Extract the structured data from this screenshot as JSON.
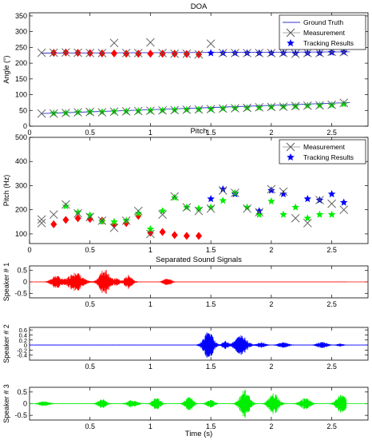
{
  "chart_data": [
    {
      "type": "scatter",
      "title": "DOA",
      "xlabel": "",
      "ylabel": "Angle (°)",
      "xlim": [
        0,
        2.8
      ],
      "ylim": [
        0,
        360
      ],
      "xticks": [
        "0",
        "0.5",
        "1",
        "1.5",
        "2",
        "2.5"
      ],
      "xtick_values": [
        0,
        0.5,
        1,
        1.5,
        2,
        2.5
      ],
      "yticks": [
        "0",
        "50",
        "100",
        "150",
        "200",
        "250",
        "300",
        "350"
      ],
      "ytick_values": [
        0,
        50,
        100,
        150,
        200,
        250,
        300,
        350
      ],
      "legend": [
        "Ground Truth",
        "Measurement",
        "Tracking Results"
      ],
      "legend_placement": "top-right",
      "ground_truth": [
        {
          "x": [
            0.1,
            2.65
          ],
          "y": [
            232,
            236
          ]
        },
        {
          "x": [
            0.1,
            2.65
          ],
          "y": [
            40,
            75
          ]
        }
      ],
      "measurement": {
        "x": [
          0.1,
          0.2,
          0.3,
          0.4,
          0.5,
          0.6,
          0.7,
          0.8,
          0.9,
          1.0,
          1.1,
          1.2,
          1.3,
          1.4,
          1.5,
          1.6,
          1.7,
          1.8,
          1.9,
          2.0,
          2.1,
          2.2,
          2.3,
          2.4,
          2.5,
          2.6,
          0.1,
          0.2,
          0.3,
          0.4,
          0.5,
          0.6,
          0.7,
          0.8,
          0.9,
          1.0,
          1.1,
          1.2,
          1.3,
          1.4,
          1.5,
          1.6,
          1.7,
          1.8,
          1.9,
          2.0,
          2.1,
          2.2,
          2.3,
          2.4,
          2.5,
          2.6
        ],
        "y": [
          233,
          233,
          234,
          233,
          232,
          232,
          264,
          232,
          232,
          266,
          232,
          230,
          230,
          228,
          262,
          232,
          232,
          232,
          232,
          232,
          232,
          230,
          232,
          232,
          236,
          235,
          40,
          40,
          42,
          44,
          45,
          44,
          46,
          47,
          48,
          49,
          50,
          51,
          52,
          53,
          54,
          56,
          57,
          58,
          60,
          61,
          62,
          64,
          65,
          66,
          68,
          74
        ]
      },
      "series": [
        {
          "name": "Tracking Results",
          "color": "#ff0000",
          "marker": "diamond",
          "x": [
            0.2,
            0.3,
            0.4,
            0.5,
            0.6,
            0.7,
            0.8,
            0.9,
            1.0,
            1.1,
            1.2,
            1.3,
            1.4
          ],
          "y": [
            233,
            234,
            233,
            232,
            231,
            231,
            230,
            230,
            230,
            230,
            230,
            229,
            228
          ]
        },
        {
          "name": "Tracking Results",
          "color": "#0000ff",
          "marker": "star",
          "x": [
            1.5,
            1.6,
            1.7,
            1.8,
            1.9,
            2.0,
            2.1,
            2.2,
            2.3,
            2.4,
            2.5,
            2.6
          ],
          "y": [
            232,
            232,
            232,
            232,
            232,
            232,
            232,
            231,
            232,
            232,
            234,
            235
          ]
        },
        {
          "name": "Tracking Results",
          "color": "#00ee00",
          "marker": "star",
          "x": [
            0.2,
            0.3,
            0.4,
            0.5,
            0.6,
            0.7,
            0.8,
            0.9,
            1.0,
            1.1,
            1.2,
            1.3,
            1.4,
            1.5,
            1.6,
            1.7,
            1.8,
            1.9,
            2.0,
            2.1,
            2.2,
            2.3,
            2.4,
            2.5,
            2.6
          ],
          "y": [
            41,
            42,
            44,
            45,
            45,
            46,
            47,
            48,
            49,
            50,
            51,
            52,
            53,
            54,
            56,
            57,
            58,
            59,
            61,
            62,
            63,
            65,
            66,
            67,
            70
          ]
        }
      ]
    },
    {
      "type": "scatter",
      "title": "Pitch",
      "xlabel": "",
      "ylabel": "Pitch (Hz)",
      "xlim": [
        0,
        2.8
      ],
      "ylim": [
        60,
        500
      ],
      "xticks": [
        "0",
        "0.5",
        "1",
        "1.5",
        "2",
        "2.5"
      ],
      "xtick_values": [
        0,
        0.5,
        1,
        1.5,
        2,
        2.5
      ],
      "yticks": [
        "100",
        "200",
        "300",
        "400",
        "500"
      ],
      "ytick_values": [
        100,
        200,
        300,
        400,
        500
      ],
      "legend": [
        "Measurement",
        "Tracking Results"
      ],
      "legend_placement": "top-right",
      "measurement": {
        "x": [
          0.1,
          0.1,
          0.2,
          0.3,
          0.4,
          0.5,
          0.6,
          0.7,
          0.8,
          0.9,
          1.0,
          1.1,
          1.2,
          1.3,
          1.4,
          1.5,
          1.6,
          1.7,
          1.8,
          1.9,
          2.0,
          2.1,
          2.2,
          2.3,
          2.4,
          2.5,
          2.6
        ],
        "y": [
          145,
          160,
          180,
          222,
          185,
          170,
          155,
          125,
          155,
          195,
          100,
          180,
          255,
          210,
          195,
          205,
          280,
          270,
          205,
          190,
          285,
          275,
          165,
          145,
          240,
          225,
          200
        ]
      },
      "series": [
        {
          "name": "Tracking Results",
          "color": "#ff0000",
          "marker": "diamond",
          "x": [
            0.2,
            0.3,
            0.4,
            0.5,
            0.6,
            0.7,
            0.8,
            0.9,
            1.0,
            1.1,
            1.2,
            1.3,
            1.4
          ],
          "y": [
            140,
            158,
            165,
            162,
            155,
            140,
            145,
            175,
            105,
            108,
            95,
            92,
            92
          ]
        },
        {
          "name": "Tracking Results",
          "color": "#0000ff",
          "marker": "star",
          "x": [
            1.5,
            1.6,
            1.7,
            1.9,
            2.0,
            2.1,
            2.3,
            2.4,
            2.5,
            2.6
          ],
          "y": [
            245,
            285,
            265,
            195,
            280,
            265,
            245,
            240,
            265,
            230
          ]
        },
        {
          "name": "Tracking Results",
          "color": "#00ee00",
          "marker": "star",
          "x": [
            0.3,
            0.4,
            0.5,
            0.6,
            0.7,
            0.8,
            0.9,
            1.0,
            1.1,
            1.2,
            1.3,
            1.4,
            1.5,
            1.6,
            1.7,
            1.8,
            1.9,
            2.0,
            2.1,
            2.2,
            2.3,
            2.4,
            2.5
          ],
          "y": [
            215,
            190,
            178,
            152,
            150,
            155,
            185,
            120,
            195,
            250,
            210,
            205,
            210,
            238,
            270,
            210,
            180,
            235,
            180,
            210,
            165,
            180,
            180
          ]
        }
      ]
    },
    {
      "type": "line",
      "title": "Separated Sound Signals",
      "xlabel": "",
      "ylabel": "Speaker # 1",
      "color": "#ff0000",
      "xlim": [
        0,
        2.8
      ],
      "ylim": [
        -0.7,
        0.7
      ],
      "xticks": [
        "0.5",
        "1",
        "1.5",
        "2",
        "2.5"
      ],
      "xtick_values": [
        0.5,
        1,
        1.5,
        2,
        2.5
      ],
      "yticks": [
        "-0.5",
        "0",
        "0.5"
      ],
      "ytick_values": [
        -0.5,
        0,
        0.5
      ],
      "bursts": [
        {
          "t": 0.22,
          "amp": 0.28,
          "width": 0.05
        },
        {
          "t": 0.38,
          "amp": 0.45,
          "width": 0.07
        },
        {
          "t": 0.62,
          "amp": 0.6,
          "width": 0.05
        },
        {
          "t": 0.72,
          "amp": 0.15,
          "width": 0.03
        },
        {
          "t": 0.82,
          "amp": 0.3,
          "width": 0.04
        },
        {
          "t": 1.14,
          "amp": 0.15,
          "width": 0.04
        }
      ]
    },
    {
      "type": "line",
      "title": "",
      "xlabel": "",
      "ylabel": "Speaker # 2",
      "color": "#0000ff",
      "xlim": [
        0,
        2.8
      ],
      "ylim": [
        -0.6,
        0.7
      ],
      "xticks": [
        "0.5",
        "1",
        "1.5",
        "2",
        "2.5"
      ],
      "xtick_values": [
        0.5,
        1,
        1.5,
        2,
        2.5
      ],
      "yticks": [
        "-0.4",
        "-0.2",
        "0",
        "0.2",
        "0.4",
        "0.6"
      ],
      "ytick_values": [
        -0.4,
        -0.2,
        0,
        0.2,
        0.4,
        0.6
      ],
      "bursts": [
        {
          "t": 1.48,
          "amp": 0.55,
          "width": 0.05
        },
        {
          "t": 1.62,
          "amp": 0.15,
          "width": 0.03
        },
        {
          "t": 1.75,
          "amp": 0.4,
          "width": 0.06
        },
        {
          "t": 1.92,
          "amp": 0.1,
          "width": 0.04
        },
        {
          "t": 2.1,
          "amp": 0.1,
          "width": 0.05
        },
        {
          "t": 2.42,
          "amp": 0.12,
          "width": 0.05
        },
        {
          "t": 2.57,
          "amp": 0.05,
          "width": 0.03
        }
      ]
    },
    {
      "type": "line",
      "title": "",
      "xlabel": "Time (s)",
      "ylabel": "Speaker # 3",
      "color": "#00ee00",
      "xlim": [
        0,
        2.8
      ],
      "ylim": [
        -0.7,
        0.7
      ],
      "xticks": [
        "0.5",
        "1",
        "1.5",
        "2",
        "2.5"
      ],
      "xtick_values": [
        0.5,
        1,
        1.5,
        2,
        2.5
      ],
      "yticks": [
        "-0.5",
        "0",
        "0.5"
      ],
      "ytick_values": [
        -0.5,
        0,
        0.5
      ],
      "bursts": [
        {
          "t": 0.12,
          "amp": 0.1,
          "width": 0.05
        },
        {
          "t": 0.6,
          "amp": 0.2,
          "width": 0.04
        },
        {
          "t": 0.85,
          "amp": 0.15,
          "width": 0.05
        },
        {
          "t": 1.05,
          "amp": 0.25,
          "width": 0.04
        },
        {
          "t": 1.32,
          "amp": 0.3,
          "width": 0.04
        },
        {
          "t": 1.5,
          "amp": 0.15,
          "width": 0.04
        },
        {
          "t": 1.78,
          "amp": 0.6,
          "width": 0.05
        },
        {
          "t": 2.02,
          "amp": 0.45,
          "width": 0.05
        },
        {
          "t": 2.28,
          "amp": 0.25,
          "width": 0.05
        },
        {
          "t": 2.58,
          "amp": 0.4,
          "width": 0.05
        }
      ]
    }
  ]
}
